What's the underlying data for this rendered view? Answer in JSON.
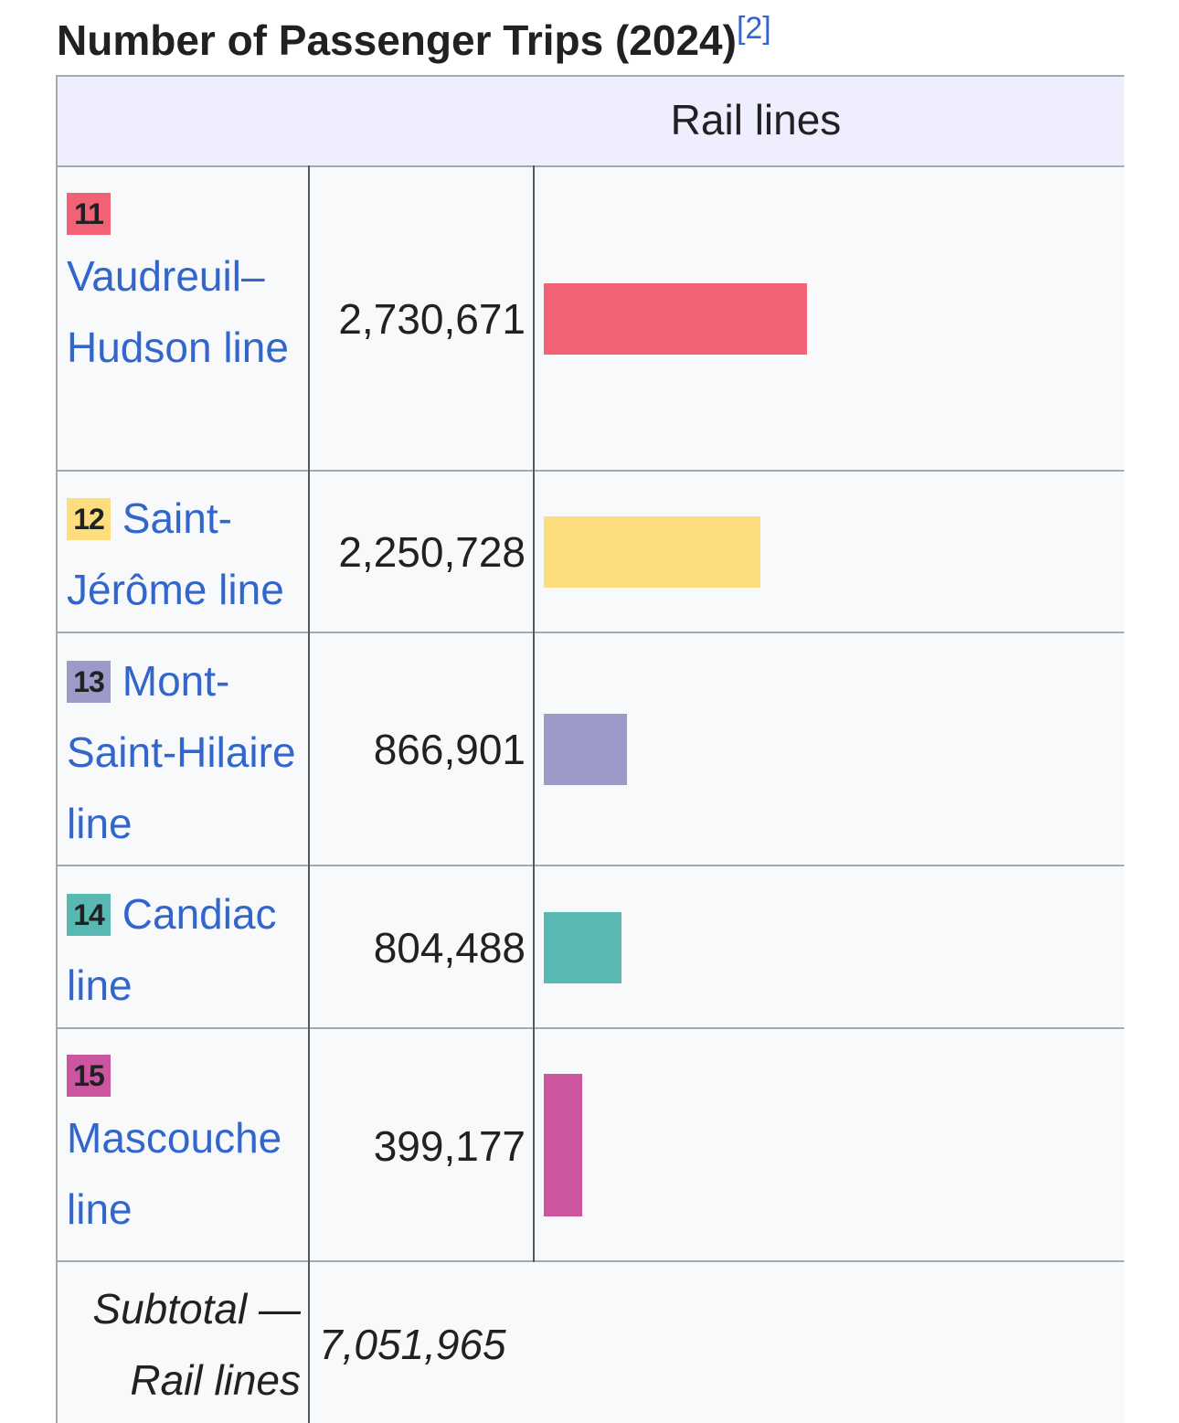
{
  "caption": {
    "title": "Number of Passenger Trips (2024)",
    "ref": "[2]"
  },
  "header": {
    "group": "Rail lines"
  },
  "chart_data": {
    "type": "bar",
    "orientation": "horizontal",
    "title": "Number of Passenger Trips (2024)",
    "categories": [
      "Vaudreuil–Hudson line",
      "Saint-Jérôme line",
      "Mont-Saint-Hilaire line",
      "Candiac line",
      "Mascouche line"
    ],
    "values": [
      2730671,
      2250728,
      866901,
      804488,
      399177
    ],
    "colors": [
      "#f26176",
      "#fedd7e",
      "#9b9ac8",
      "#59b8b1",
      "#cc559f"
    ],
    "rows": [
      {
        "badge": "11",
        "label": "Vaudreuil–Hudson line",
        "value_text": "2,730,671",
        "value": 2730671,
        "color": "#f26176"
      },
      {
        "badge": "12",
        "label": "Saint-Jérôme line",
        "value_text": "2,250,728",
        "value": 2250728,
        "color": "#fedd7e"
      },
      {
        "badge": "13",
        "label": "Mont-Saint-Hilaire line",
        "value_text": "866,901",
        "value": 866901,
        "color": "#9b9ac8"
      },
      {
        "badge": "14",
        "label": "Candiac line",
        "value_text": "804,488",
        "value": 804488,
        "color": "#59b8b1"
      },
      {
        "badge": "15",
        "label": "Mascouche line",
        "value_text": "399,177",
        "value": 399177,
        "color": "#cc559f"
      }
    ],
    "subtotal": {
      "label": "Subtotal — Rail lines",
      "value_text": "7,051,965",
      "value": 7051965
    }
  }
}
